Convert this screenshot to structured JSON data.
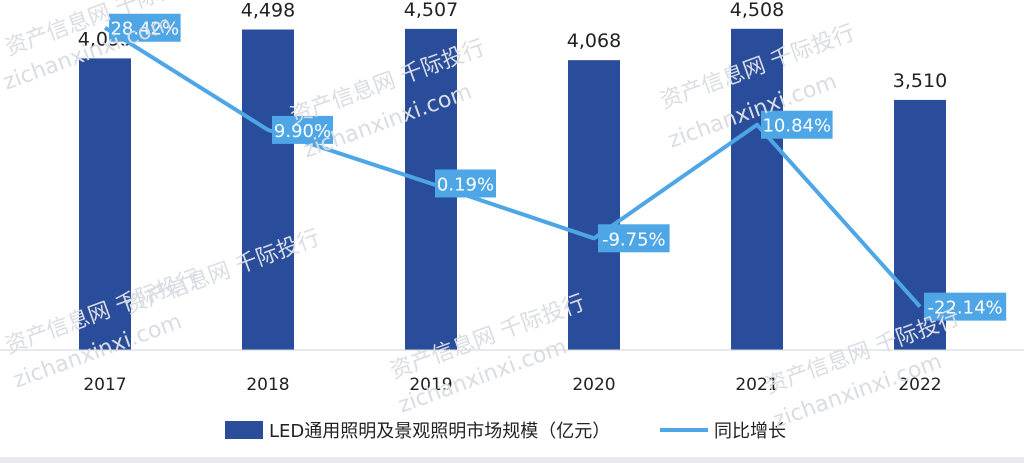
{
  "chart_data": {
    "type": "bar",
    "categories": [
      "2017",
      "2018",
      "2019",
      "2020",
      "2021",
      "2022"
    ],
    "series": [
      {
        "name": "LED通用照明及景观照明市场规模（亿元）",
        "kind": "bar",
        "values": [
          4093,
          4498,
          4507,
          4068,
          4508,
          3510
        ],
        "labels": [
          "4,093",
          "4,498",
          "4,507",
          "4,068",
          "4,508",
          "3,510"
        ],
        "color": "#2a4d9b"
      },
      {
        "name": "同比增长",
        "kind": "line",
        "values": [
          28.42,
          9.9,
          0.19,
          -9.75,
          10.84,
          -22.14
        ],
        "labels": [
          "28.42%",
          "9.90%",
          "0.19%",
          "-9.75%",
          "10.84%",
          "-22.14%"
        ],
        "color": "#4ea6e6"
      }
    ],
    "ylim": [
      0,
      4800
    ],
    "y2lim": [
      -30,
      32
    ],
    "grid": false,
    "legend_position": "bottom"
  },
  "watermarks": [
    "资产信息网  千际投行",
    "zichanxinxi.com"
  ]
}
